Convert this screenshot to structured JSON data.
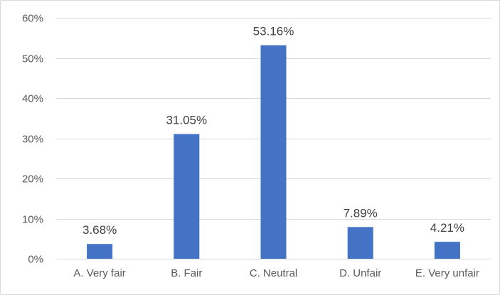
{
  "chart_data": {
    "type": "bar",
    "categories": [
      "A. Very fair",
      "B. Fair",
      "C. Neutral",
      "D. Unfair",
      "E. Very unfair"
    ],
    "values": [
      3.68,
      31.05,
      53.16,
      7.89,
      4.21
    ],
    "data_labels": [
      "3.68%",
      "31.05%",
      "53.16%",
      "7.89%",
      "4.21%"
    ],
    "title": "",
    "xlabel": "",
    "ylabel": "",
    "ylim": [
      0,
      60
    ],
    "yticks": [
      0,
      10,
      20,
      30,
      40,
      50,
      60
    ],
    "ytick_labels": [
      "0%",
      "10%",
      "20%",
      "30%",
      "40%",
      "50%",
      "60%"
    ],
    "grid": true,
    "legend": "none",
    "bar_color": "#4472c4"
  }
}
